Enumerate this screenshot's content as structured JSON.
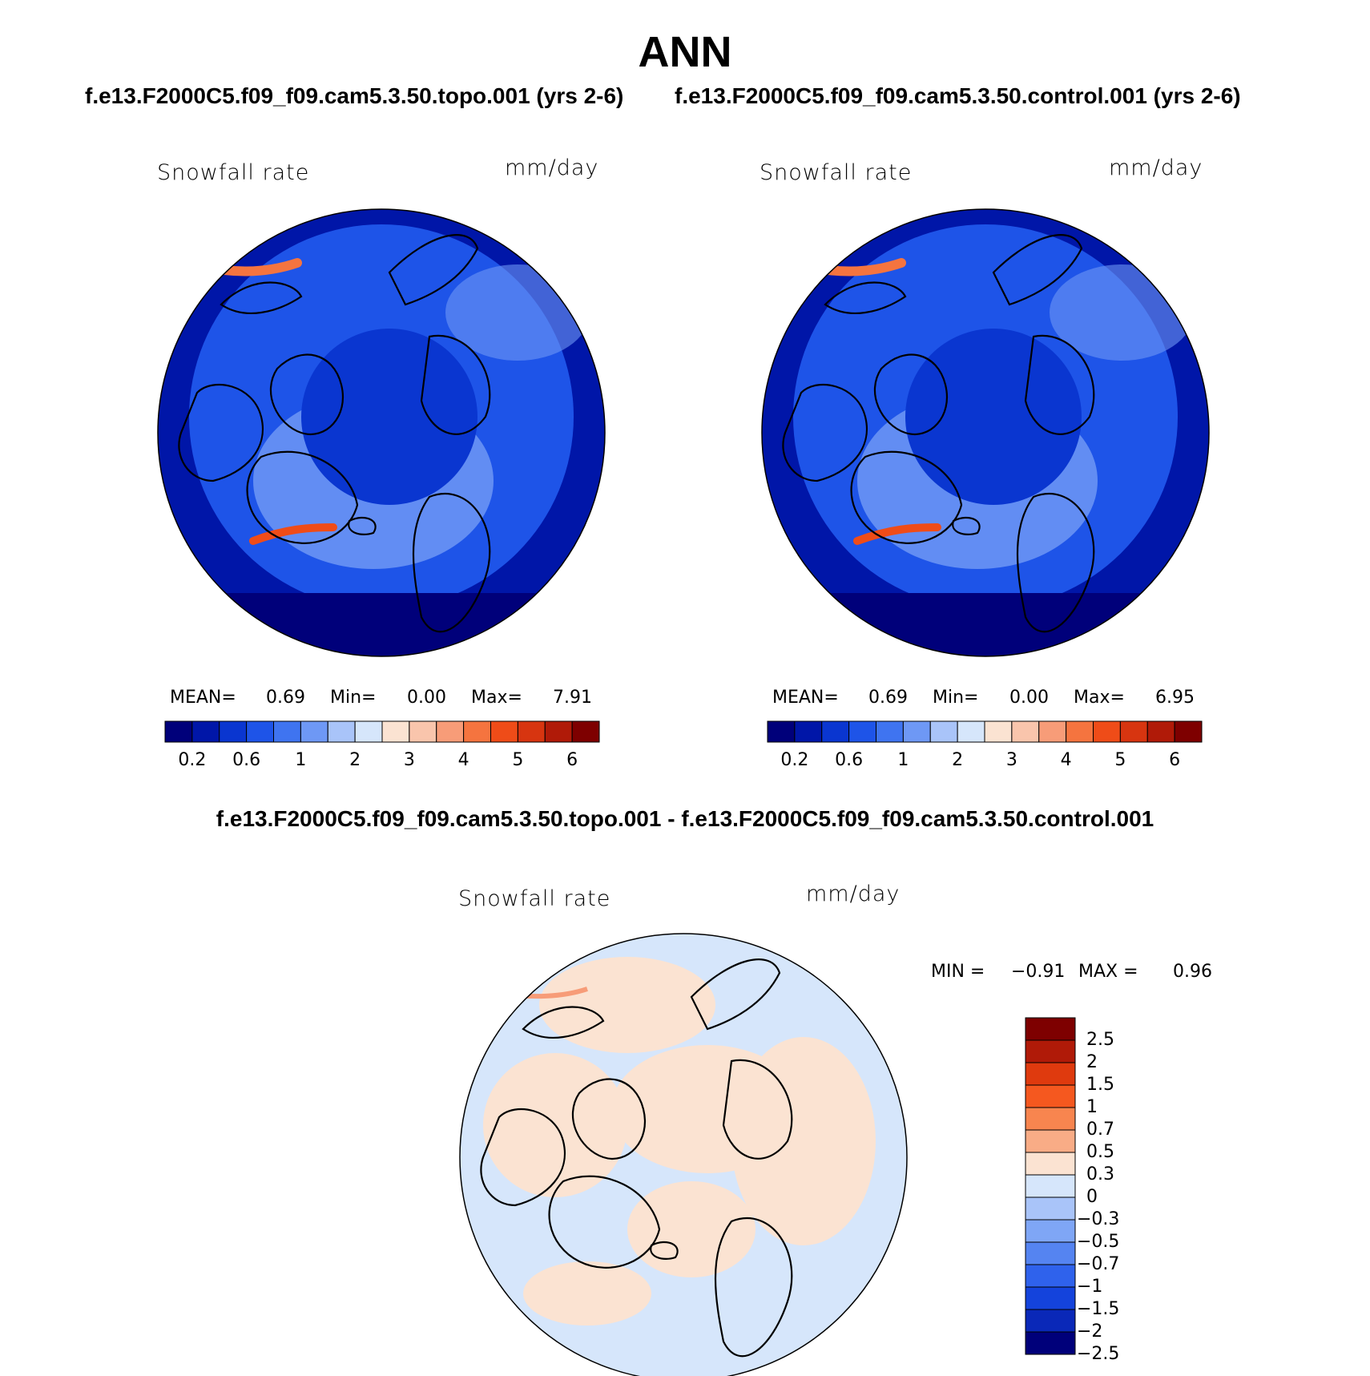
{
  "figure": {
    "title": "ANN",
    "panel_left_title": "f.e13.F2000C5.f09_f09.cam5.3.50.topo.001 (yrs 2-6)",
    "panel_right_title": "f.e13.F2000C5.f09_f09.cam5.3.50.control.001 (yrs 2-6)",
    "diff_title": "f.e13.F2000C5.f09_f09.cam5.3.50.topo.001 - f.e13.F2000C5.f09_f09.cam5.3.50.control.001"
  },
  "panels": {
    "topo": {
      "variable": "Snowfall rate",
      "units": "mm/day",
      "mean_label": "MEAN=",
      "mean_value": "0.69",
      "min_label": "Min=",
      "min_value": "0.00",
      "max_label": "Max=",
      "max_value": "7.91"
    },
    "control": {
      "variable": "Snowfall rate",
      "units": "mm/day",
      "mean_label": "MEAN=",
      "mean_value": "0.69",
      "min_label": "Min=",
      "min_value": "0.00",
      "max_label": "Max=",
      "max_value": "6.95"
    },
    "diff": {
      "variable": "Snowfall rate",
      "units": "mm/day",
      "min_label": "MIN =",
      "min_value": "−0.91",
      "max_label": "MAX =",
      "max_value": "0.96"
    }
  },
  "colorbars": {
    "absolute": {
      "levels": [
        0.2,
        0.4,
        0.6,
        0.8,
        1,
        1.5,
        2,
        2.5,
        3,
        3.5,
        4,
        4.5,
        5,
        5.5,
        6
      ],
      "tick_labels": [
        "0.2",
        "0.6",
        "1",
        "2",
        "3",
        "4",
        "5",
        "6"
      ],
      "colors": [
        "#00007a",
        "#0016a8",
        "#0a36d0",
        "#1e54e8",
        "#3f74f0",
        "#6e98f5",
        "#a9c4f9",
        "#d6e6fb",
        "#fbe3d2",
        "#f9c5ac",
        "#f79c78",
        "#f5743f",
        "#ef4c18",
        "#d73510",
        "#b01a08",
        "#7e0000"
      ]
    },
    "difference": {
      "tick_labels": [
        "2.5",
        "2",
        "1.5",
        "1",
        "0.7",
        "0.5",
        "0.3",
        "0",
        "−0.3",
        "−0.5",
        "−0.7",
        "−1",
        "−1.5",
        "−2",
        "−2.5"
      ],
      "colors_top_to_bottom": [
        "#7e0000",
        "#b01a08",
        "#df3a0e",
        "#f5581f",
        "#f8854f",
        "#f9ac86",
        "#fbe3d2",
        "#d6e6fb",
        "#a9c4f9",
        "#7fa6f6",
        "#5584f1",
        "#2f62ec",
        "#1443dc",
        "#0a28b8",
        "#00007a"
      ]
    }
  },
  "map_colors": {
    "ocean_high_lat": "#1e54e8",
    "ocean_low_lat": "#0016a8",
    "tropics_edge": "#00007a",
    "storm_track": "#6e98f5",
    "diff_negative": "#d6e6fb",
    "diff_positive": "#fbe3d2",
    "coast": "#000000"
  }
}
